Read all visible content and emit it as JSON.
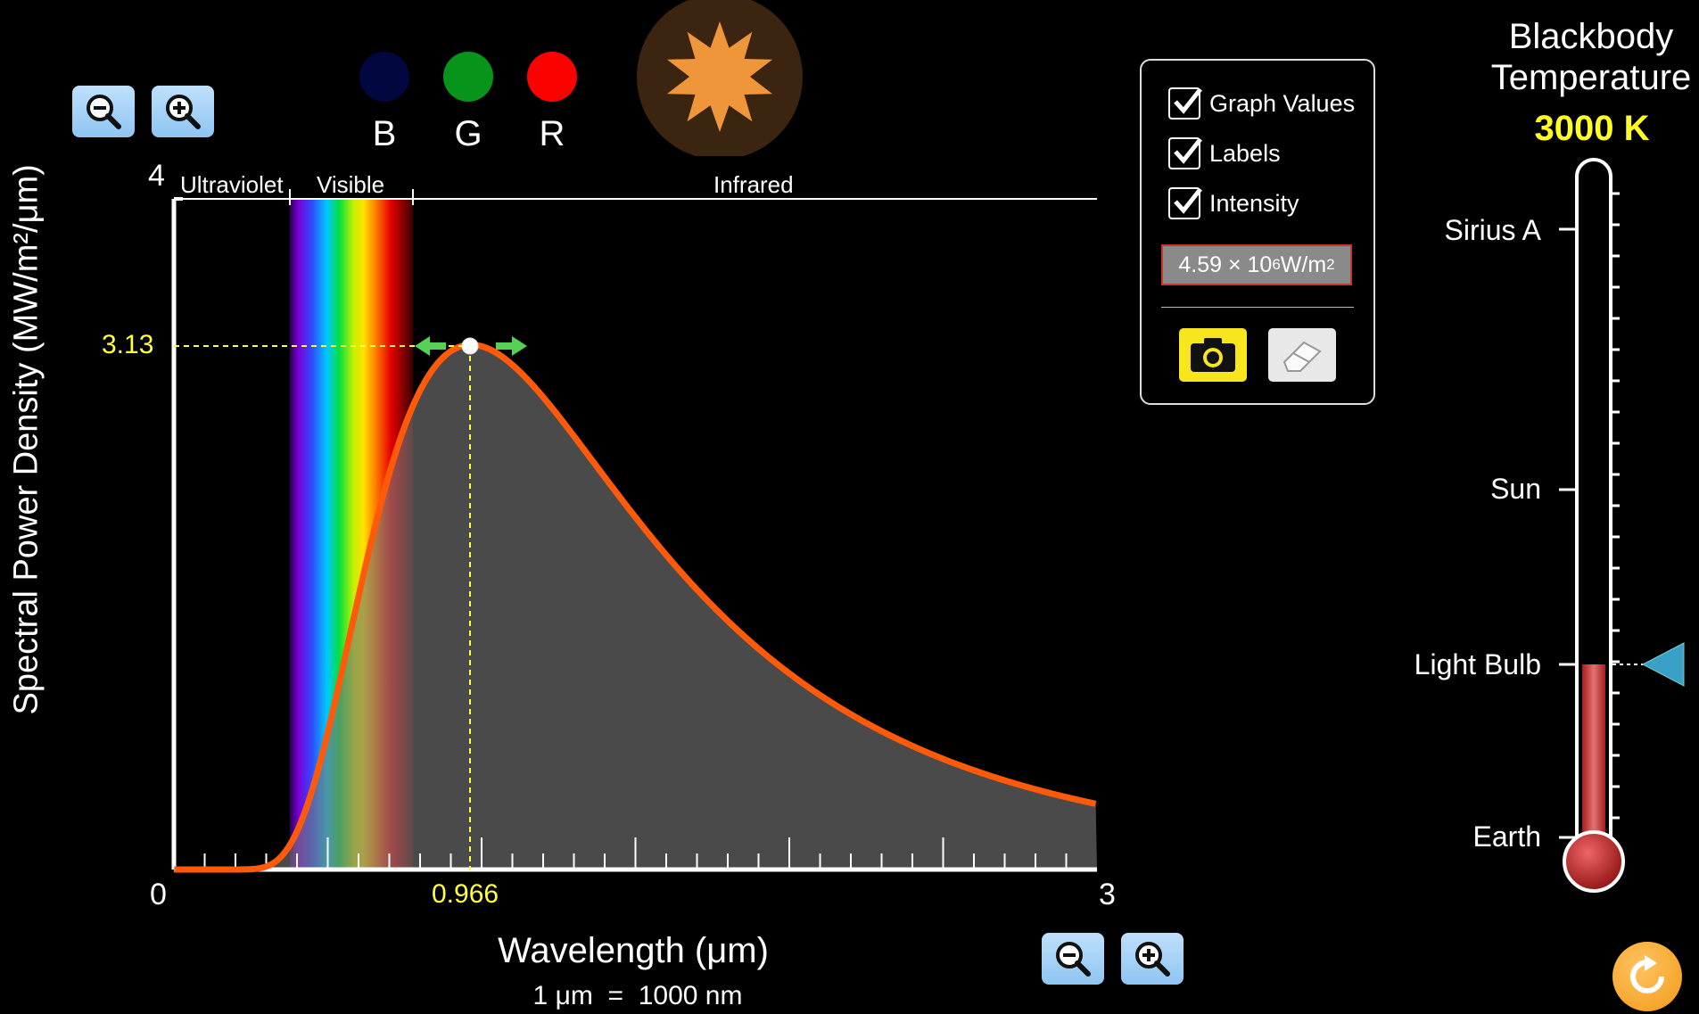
{
  "color_labels": {
    "b": "B",
    "g": "G",
    "r": "R"
  },
  "colors": {
    "blue_dot": "#02073f",
    "green_dot": "#06951a",
    "red_dot": "#fb0200",
    "star_bg": "#3b2410",
    "star": "#f0963a",
    "curve": "#ff5a0a",
    "accent_yellow": "#ffff44"
  },
  "chart": {
    "region_labels": {
      "uv": "Ultraviolet",
      "visible": "Visible",
      "ir": "Infrared"
    },
    "y_max_label": "4",
    "x_min_label": "0",
    "x_max_label": "3",
    "peak_y_label": "3.13",
    "peak_x_label": "0.966",
    "ylabel": "Spectral Power Density (MW/m²/μm)",
    "xlabel": "Wavelength (μm)",
    "xsub": "1 μm  =  1000 nm"
  },
  "chart_data": {
    "type": "area",
    "title": "",
    "xlabel": "Wavelength (μm)",
    "ylabel": "Spectral Power Density (MW/m²/μm)",
    "xlim": [
      0,
      3
    ],
    "ylim": [
      0,
      4
    ],
    "temperature_K": 3000,
    "peak": {
      "x": 0.966,
      "y": 3.13
    },
    "series": [
      {
        "values_source": "blackbody_planck",
        "x": [
          0.2,
          0.3,
          0.4,
          0.5,
          0.6,
          0.7,
          0.8,
          0.9,
          0.966,
          1.1,
          1.3,
          1.5,
          1.8,
          2.1,
          2.4,
          2.7,
          3.0
        ],
        "y": [
          0.0,
          0.01,
          0.16,
          0.71,
          1.53,
          2.29,
          2.82,
          3.09,
          3.13,
          3.01,
          2.6,
          2.14,
          1.55,
          1.11,
          0.8,
          0.59,
          0.44
        ]
      }
    ]
  },
  "panel": {
    "graph_values": "Graph Values",
    "labels": "Labels",
    "intensity": "Intensity",
    "intensity_value": "4.59 × 10",
    "intensity_exp": "6",
    "intensity_unit": " W/m",
    "intensity_unit_exp": "2"
  },
  "thermometer": {
    "title": "Blackbody Temperature",
    "value": "3000 K",
    "labels": {
      "sirius": "Sirius A",
      "sun": "Sun",
      "bulb": "Light Bulb",
      "earth": "Earth"
    }
  },
  "icons": [
    "zoom-out-icon",
    "zoom-in-icon",
    "star-icon",
    "checkbox-icon",
    "camera-icon",
    "eraser-icon",
    "slider-arrow-icon",
    "reset-icon"
  ]
}
